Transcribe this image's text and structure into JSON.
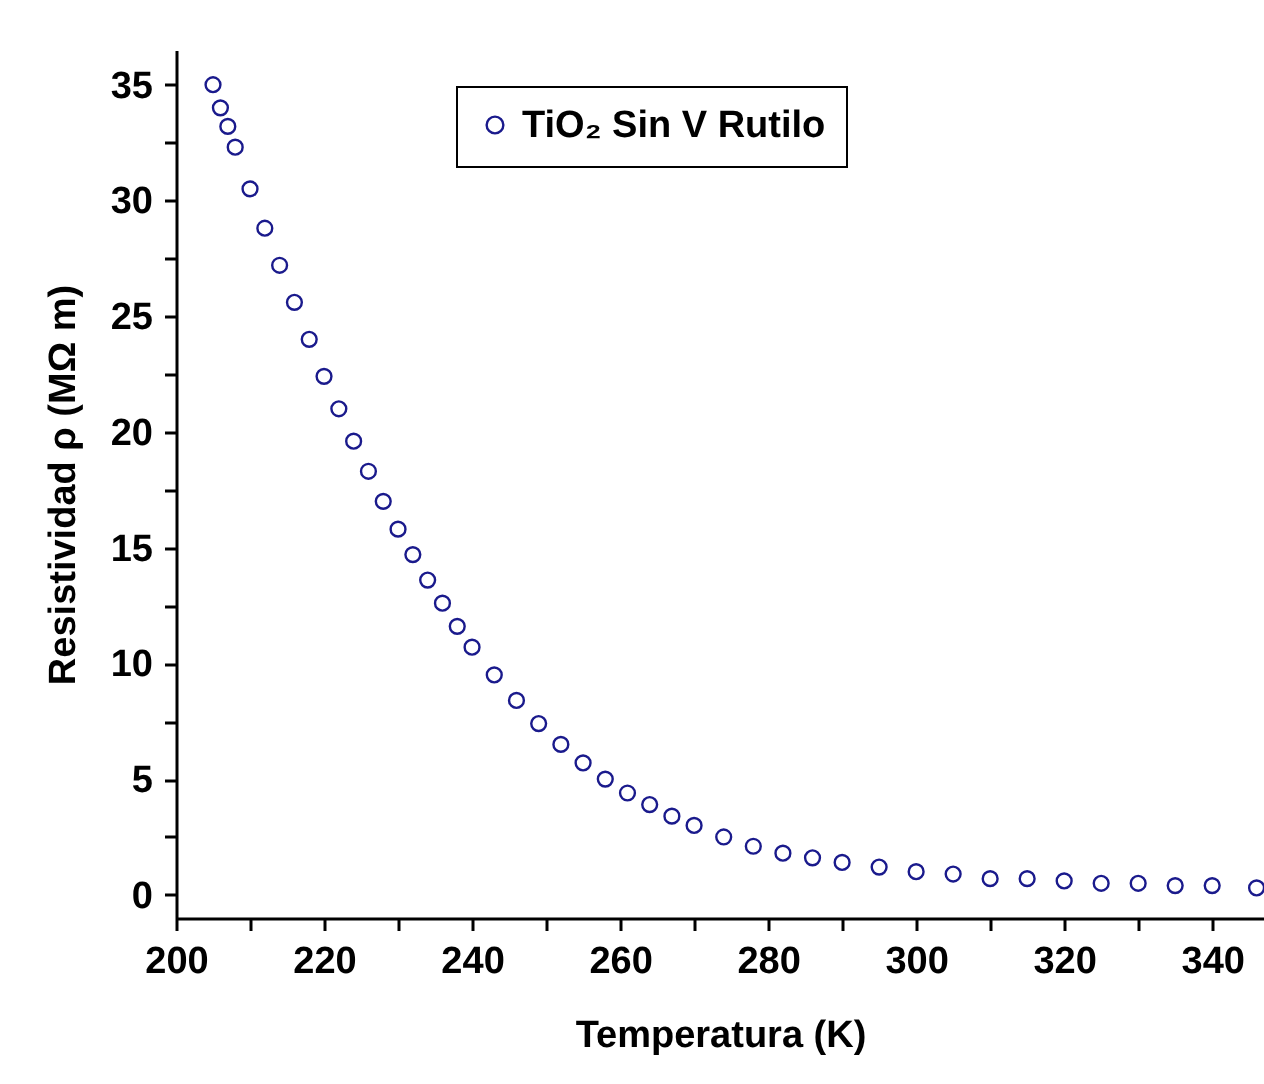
{
  "chart_data": {
    "type": "scatter",
    "xlabel": "Temperatura (K)",
    "ylabel": "Resistividad ρ (MΩ m)",
    "x": [
      205,
      206,
      207,
      208,
      210,
      212,
      214,
      216,
      218,
      220,
      222,
      224,
      226,
      228,
      230,
      232,
      234,
      236,
      238,
      240,
      243,
      246,
      249,
      252,
      255,
      258,
      261,
      264,
      267,
      270,
      274,
      278,
      282,
      286,
      290,
      295,
      300,
      305,
      310,
      315,
      320,
      325,
      330,
      335,
      340,
      346
    ],
    "series": [
      {
        "name": "TiO₂ Sin V Rutilo",
        "color": "#1a1a8c",
        "values": [
          35,
          34,
          33.2,
          32.3,
          30.5,
          28.8,
          27.2,
          25.6,
          24,
          22.4,
          21,
          19.6,
          18.3,
          17,
          15.8,
          14.7,
          13.6,
          12.6,
          11.6,
          10.7,
          9.5,
          8.4,
          7.4,
          6.5,
          5.7,
          5.0,
          4.4,
          3.9,
          3.4,
          3.0,
          2.5,
          2.1,
          1.8,
          1.6,
          1.4,
          1.2,
          1.0,
          0.9,
          0.7,
          0.7,
          0.6,
          0.5,
          0.5,
          0.4,
          0.4,
          0.3
        ]
      }
    ],
    "xlim": [
      200,
      347
    ],
    "ylim": [
      -1,
      36.5
    ],
    "xticks": [
      200,
      {
        "value": 210,
        "label": null
      },
      220,
      {
        "value": 230,
        "label": null
      },
      240,
      {
        "value": 250,
        "label": null
      },
      260,
      {
        "value": 270,
        "label": null
      },
      280,
      {
        "value": 290,
        "label": null
      },
      300,
      {
        "value": 310,
        "label": null
      },
      320,
      {
        "value": 330,
        "label": null
      },
      340
    ],
    "yticks": [
      0,
      {
        "value": 2.5,
        "label": null
      },
      5,
      {
        "value": 7.5,
        "label": null
      },
      10,
      {
        "value": 12.5,
        "label": null
      },
      15,
      {
        "value": 17.5,
        "label": null
      },
      20,
      {
        "value": 22.5,
        "label": null
      },
      25,
      {
        "value": 27.5,
        "label": null
      },
      30,
      {
        "value": 32.5,
        "label": null
      },
      35
    ],
    "marker": "circle",
    "grid": false,
    "legend": "top"
  }
}
